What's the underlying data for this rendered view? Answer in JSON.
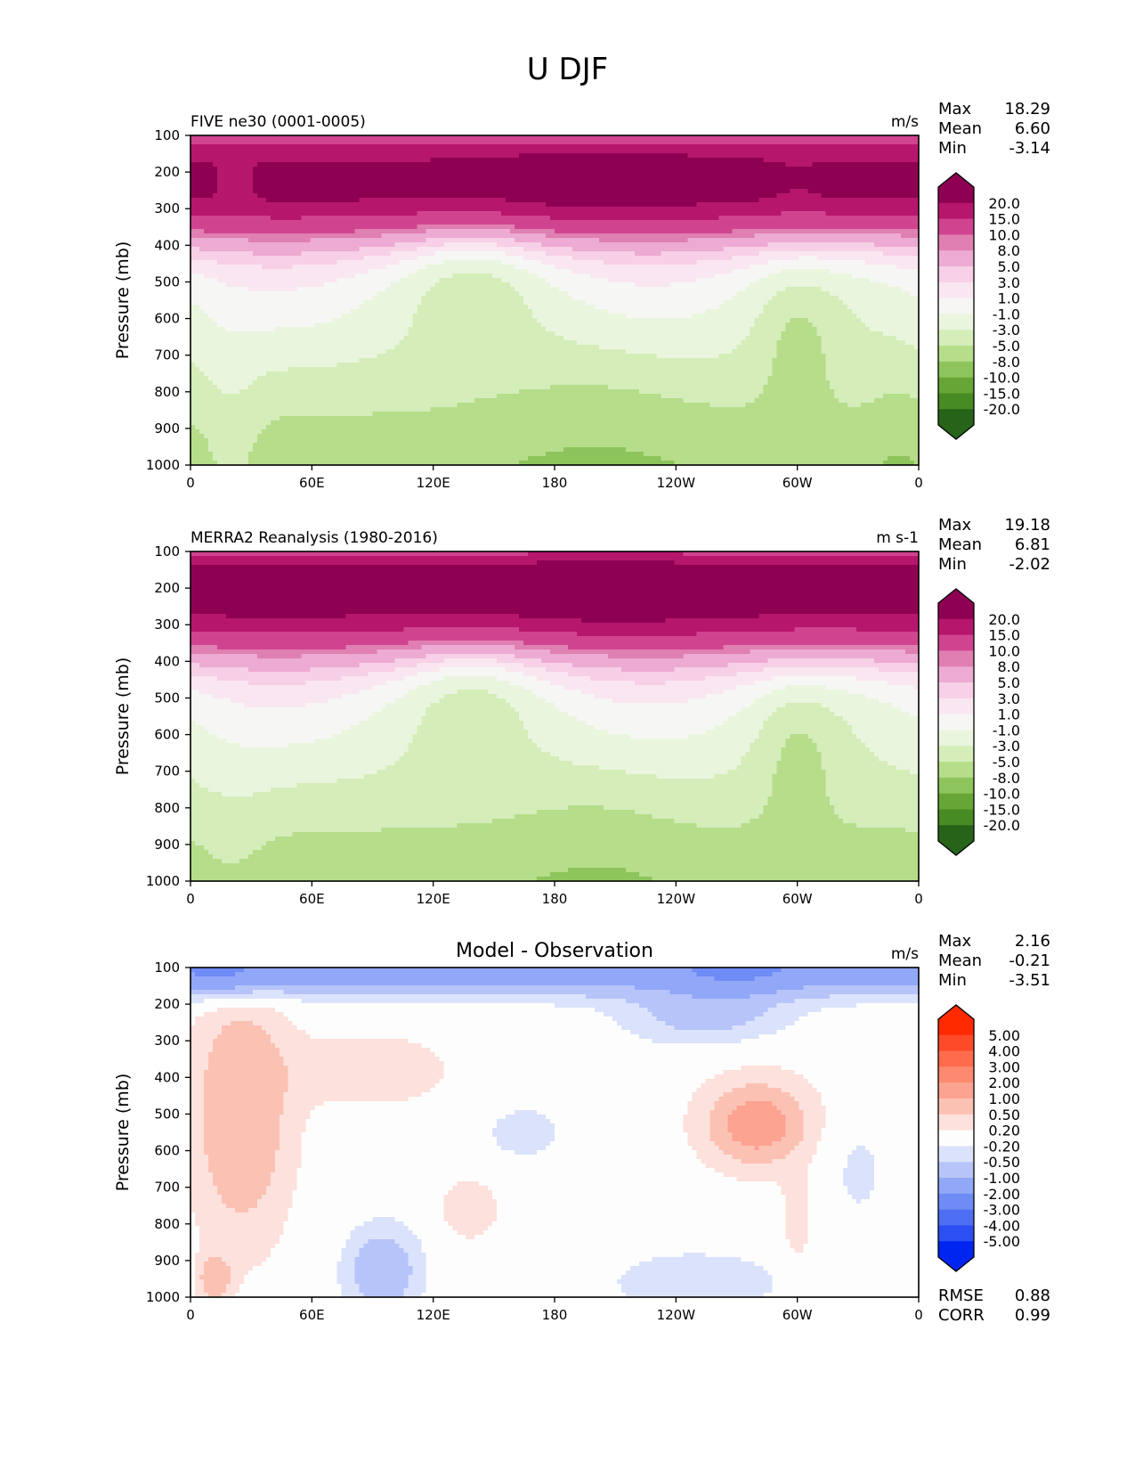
{
  "figure": {
    "suptitle": "U DJF"
  },
  "chart_data": [
    {
      "type": "heatmap",
      "subtype": "filled-contour",
      "title_left": "FIVE ne30 (0001-0005)",
      "title_center": "",
      "units": "m/s",
      "ylabel": "Pressure (mb)",
      "xlabel": "",
      "x_ticks": [
        "0",
        "60E",
        "120E",
        "180",
        "120W",
        "60W",
        "0"
      ],
      "x_range_deg": [
        0,
        360
      ],
      "y_ticks": [
        "100",
        "200",
        "300",
        "400",
        "500",
        "600",
        "700",
        "800",
        "900",
        "1000"
      ],
      "y_range_mb": [
        100,
        1000
      ],
      "stats": [
        {
          "label": "Max",
          "value": "18.29"
        },
        {
          "label": "Mean",
          "value": "6.60"
        },
        {
          "label": "Min",
          "value": "-3.14"
        }
      ],
      "colorbar": {
        "levels": [
          "20.0",
          "15.0",
          "10.0",
          "8.0",
          "5.0",
          "3.0",
          "1.0",
          "-1.0",
          "-3.0",
          "-5.0",
          "-8.0",
          "-10.0",
          "-15.0",
          "-20.0"
        ],
        "colors": [
          "#8e0152",
          "#b7166d",
          "#d0448f",
          "#e07fb2",
          "#edaad2",
          "#f7cfe6",
          "#fae6f0",
          "#f6f6f4",
          "#eaf5dd",
          "#d4edb9",
          "#b5dd8a",
          "#8dc45b",
          "#67a636",
          "#478b24",
          "#276419"
        ],
        "extend": "both"
      },
      "field": "model"
    },
    {
      "type": "heatmap",
      "subtype": "filled-contour",
      "title_left": "MERRA2 Reanalysis (1980-2016)",
      "title_center": "",
      "units": "m s-1",
      "ylabel": "Pressure (mb)",
      "xlabel": "",
      "x_ticks": [
        "0",
        "60E",
        "120E",
        "180",
        "120W",
        "60W",
        "0"
      ],
      "x_range_deg": [
        0,
        360
      ],
      "y_ticks": [
        "100",
        "200",
        "300",
        "400",
        "500",
        "600",
        "700",
        "800",
        "900",
        "1000"
      ],
      "y_range_mb": [
        100,
        1000
      ],
      "stats": [
        {
          "label": "Max",
          "value": "19.18"
        },
        {
          "label": "Mean",
          "value": "6.81"
        },
        {
          "label": "Min",
          "value": "-2.02"
        }
      ],
      "colorbar": {
        "levels": [
          "20.0",
          "15.0",
          "10.0",
          "8.0",
          "5.0",
          "3.0",
          "1.0",
          "-1.0",
          "-3.0",
          "-5.0",
          "-8.0",
          "-10.0",
          "-15.0",
          "-20.0"
        ],
        "colors": [
          "#8e0152",
          "#b7166d",
          "#d0448f",
          "#e07fb2",
          "#edaad2",
          "#f7cfe6",
          "#fae6f0",
          "#f6f6f4",
          "#eaf5dd",
          "#d4edb9",
          "#b5dd8a",
          "#8dc45b",
          "#67a636",
          "#478b24",
          "#276419"
        ],
        "extend": "both"
      },
      "field": "obs"
    },
    {
      "type": "heatmap",
      "subtype": "filled-contour",
      "title_left": "",
      "title_center": "Model - Observation",
      "units": "m/s",
      "ylabel": "Pressure (mb)",
      "xlabel": "",
      "x_ticks": [
        "0",
        "60E",
        "120E",
        "180",
        "120W",
        "60W",
        "0"
      ],
      "x_range_deg": [
        0,
        360
      ],
      "y_ticks": [
        "100",
        "200",
        "300",
        "400",
        "500",
        "600",
        "700",
        "800",
        "900",
        "1000"
      ],
      "y_range_mb": [
        100,
        1000
      ],
      "stats": [
        {
          "label": "Max",
          "value": "2.16"
        },
        {
          "label": "Mean",
          "value": "-0.21"
        },
        {
          "label": "Min",
          "value": "-3.51"
        }
      ],
      "extra_stats": [
        {
          "label": "RMSE",
          "value": "0.88"
        },
        {
          "label": "CORR",
          "value": "0.99"
        }
      ],
      "colorbar": {
        "levels": [
          "5.00",
          "4.00",
          "3.00",
          "2.00",
          "1.00",
          "0.50",
          "0.20",
          "-0.20",
          "-0.50",
          "-1.00",
          "-2.00",
          "-3.00",
          "-4.00",
          "-5.00"
        ],
        "colors": [
          "#ff2a00",
          "#ff4a2a",
          "#ff6b4d",
          "#fd8a6f",
          "#fca392",
          "#fbc2b4",
          "#fde1dc",
          "#fdfdfd",
          "#dbe2fb",
          "#b6c4f9",
          "#91a7f7",
          "#6f8bf5",
          "#4e6ff3",
          "#2b4ff1",
          "#0025f0"
        ],
        "extend": "both"
      },
      "field": "diff"
    }
  ]
}
